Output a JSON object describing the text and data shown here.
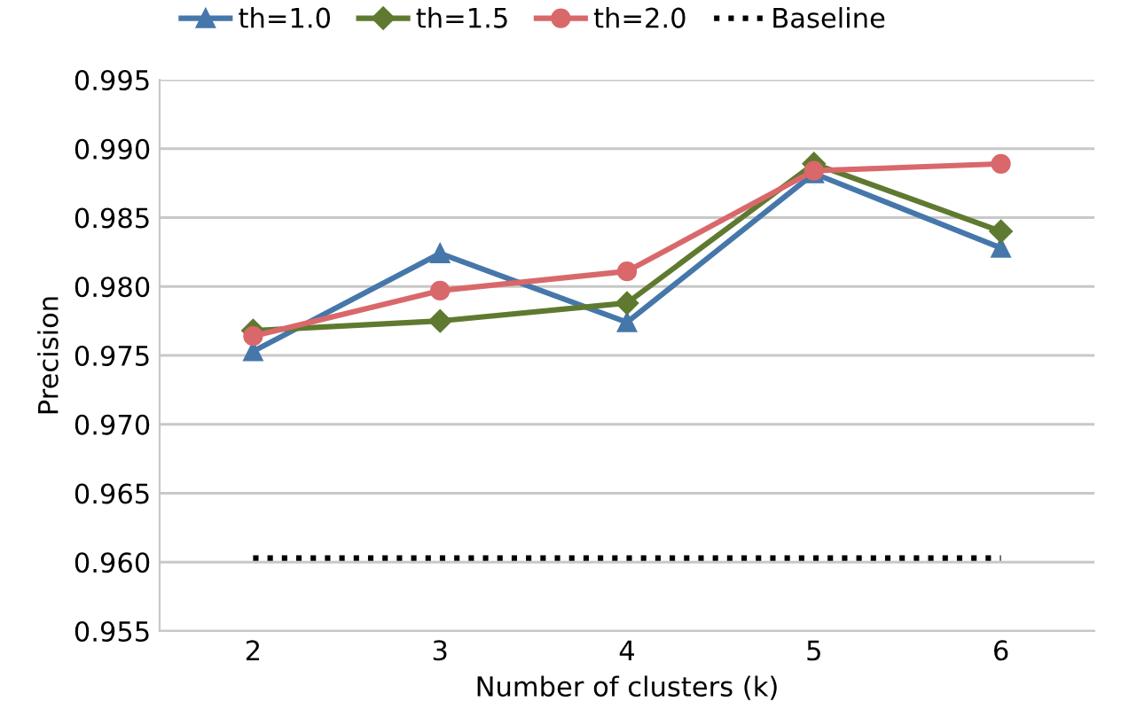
{
  "chart_data": {
    "type": "line",
    "xlabel": "Number of clusters (k)",
    "ylabel": "Precision",
    "categories": [
      "2",
      "3",
      "4",
      "5",
      "6"
    ],
    "series": [
      {
        "name": "th=1.0",
        "color": "#4677aa",
        "marker": "triangle",
        "values": [
          0.9753,
          0.9824,
          0.9774,
          0.9882,
          0.9828
        ]
      },
      {
        "name": "th=1.5",
        "color": "#5f7a30",
        "marker": "diamond",
        "values": [
          0.9768,
          0.9775,
          0.9788,
          0.9889,
          0.984
        ]
      },
      {
        "name": "th=2.0",
        "color": "#d9686a",
        "marker": "circle",
        "values": [
          0.9764,
          0.9797,
          0.9811,
          0.9884,
          0.9889
        ]
      },
      {
        "name": "Baseline",
        "color": "#000000",
        "marker": "none",
        "line_style": "dotted",
        "values": [
          0.9603,
          0.9603,
          0.9603,
          0.9603,
          0.9603
        ]
      }
    ],
    "ylim": [
      0.955,
      0.995
    ],
    "yticks": [
      {
        "value": 0.955,
        "label": "0.955"
      },
      {
        "value": 0.96,
        "label": "0.960"
      },
      {
        "value": 0.965,
        "label": "0.965"
      },
      {
        "value": 0.97,
        "label": "0.970"
      },
      {
        "value": 0.975,
        "label": "0.975"
      },
      {
        "value": 0.98,
        "label": "0.980"
      },
      {
        "value": 0.985,
        "label": "0.985"
      },
      {
        "value": 0.99,
        "label": "0.990"
      },
      {
        "value": 0.995,
        "label": "0.995"
      }
    ],
    "grid": "y",
    "legend": "top"
  }
}
